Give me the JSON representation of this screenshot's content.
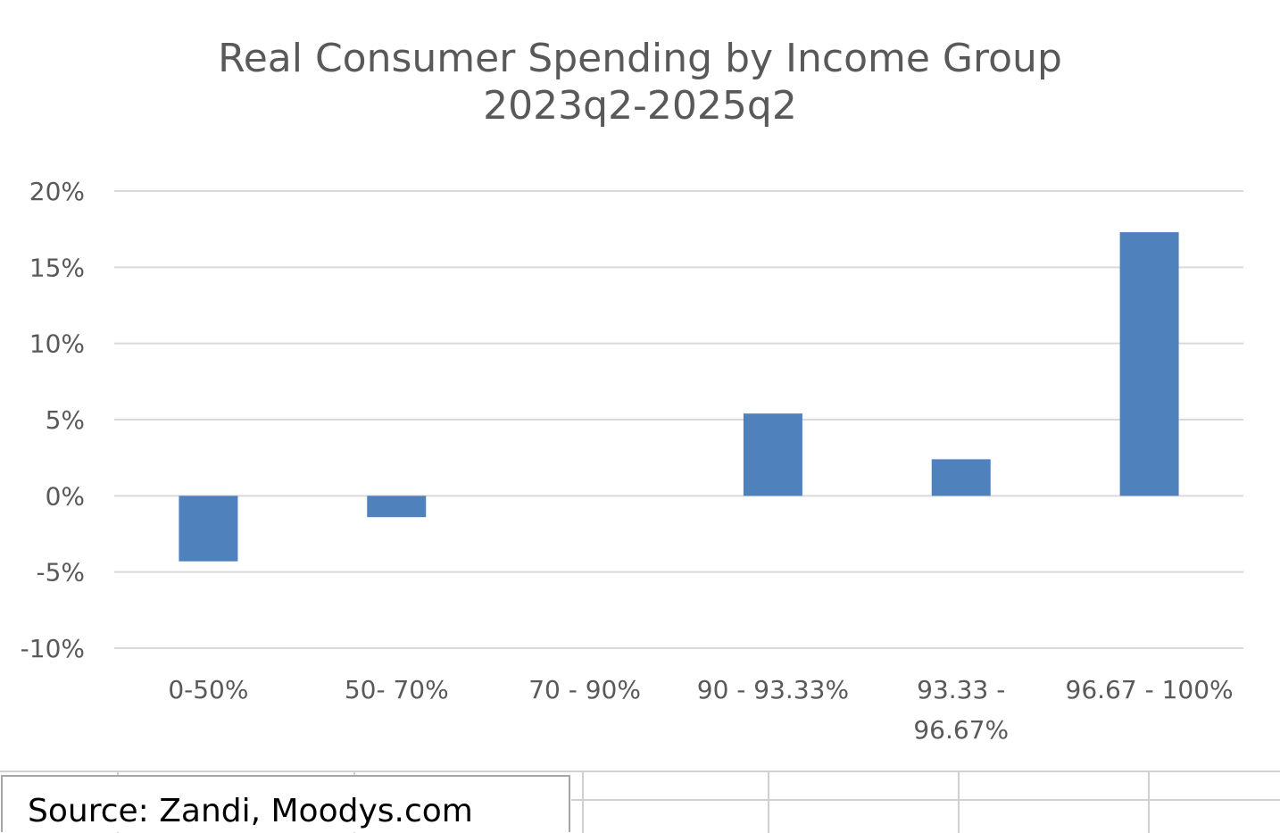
{
  "chart_data": {
    "type": "bar",
    "title": [
      "Real Consumer Spending by Income Group",
      "2023q2-2025q2"
    ],
    "categories": [
      [
        "0-50%"
      ],
      [
        "50- 70%"
      ],
      [
        "70 - 90%"
      ],
      [
        "90 - 93.33%"
      ],
      [
        "93.33 -",
        "96.67%"
      ],
      [
        "96.67 - 100%"
      ]
    ],
    "values": [
      -4.3,
      -1.4,
      0,
      5.4,
      2.4,
      17.3
    ],
    "ylim": [
      -10,
      20
    ],
    "yticks": [
      20,
      15,
      10,
      5,
      0,
      -5,
      -10
    ],
    "ytick_labels": [
      "20%",
      "15%",
      "10%",
      "5%",
      "0%",
      "-5%",
      "-10%"
    ],
    "grid": true,
    "bar_color": "#4f81bd",
    "grid_color": "#d9d9d9"
  },
  "source": {
    "text": "Source: Zandi, Moodys.com"
  }
}
